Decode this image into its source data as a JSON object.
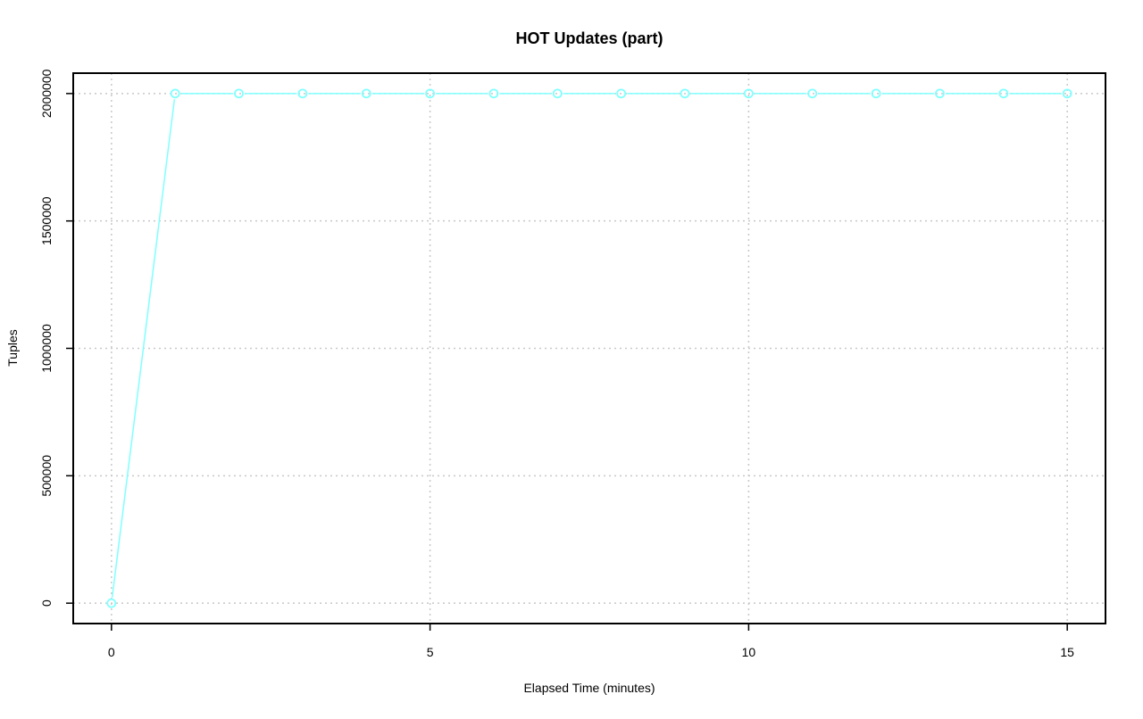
{
  "chart_data": {
    "type": "line",
    "title": "HOT Updates (part)",
    "xlabel": "Elapsed Time (minutes)",
    "ylabel": "Tuples",
    "xlim": [
      -0.6,
      15.6
    ],
    "ylim": [
      -80000,
      2080000
    ],
    "xticks": [
      0,
      5,
      10,
      15
    ],
    "yticks": [
      0,
      500000,
      1000000,
      1500000,
      2000000
    ],
    "grid": true,
    "series": [
      {
        "color": "#80ffff",
        "marker": "open-circle",
        "x": [
          0,
          1,
          2,
          3,
          4,
          5,
          6,
          7,
          8,
          9,
          10,
          11,
          12,
          13,
          14,
          15
        ],
        "y": [
          0,
          2000000,
          2000000,
          2000000,
          2000000,
          2000000,
          2000000,
          2000000,
          2000000,
          2000000,
          2000000,
          2000000,
          2000000,
          2000000,
          2000000,
          2000000
        ]
      }
    ]
  }
}
